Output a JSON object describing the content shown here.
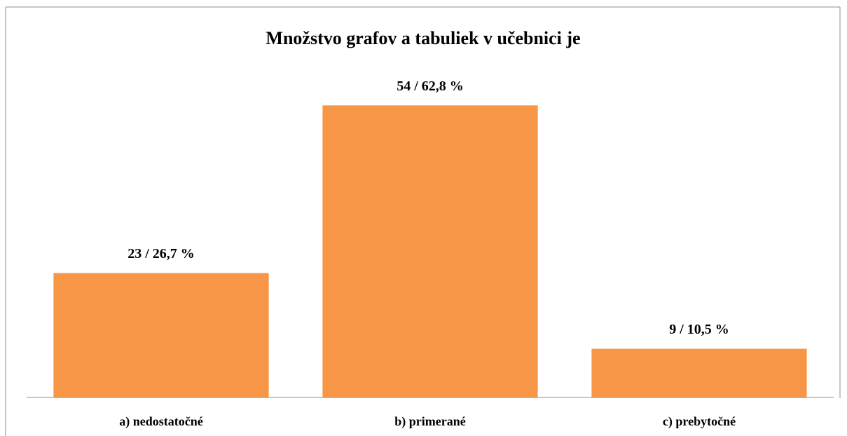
{
  "chart_data": {
    "type": "bar",
    "title": "Množstvo grafov a tabuliek v učebnici je",
    "categories": [
      "a) nedostatočné",
      "b) primerané",
      "c) prebytočné"
    ],
    "values": [
      23,
      54,
      9
    ],
    "value_labels": [
      "23 / 26,7 %",
      "54 / 62,8 %",
      "9 / 10,5 %"
    ],
    "color": "#f79646",
    "ylim": [
      0,
      60
    ]
  }
}
